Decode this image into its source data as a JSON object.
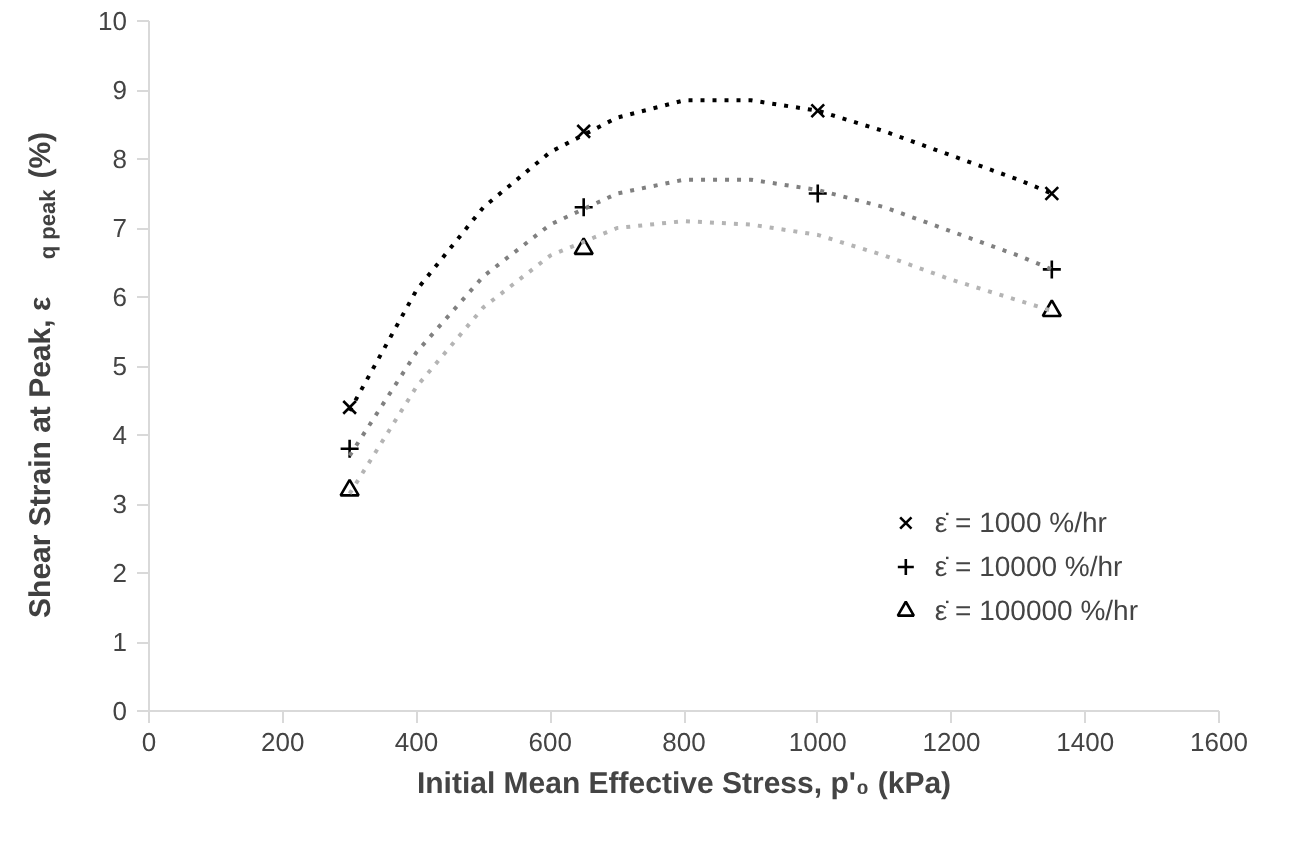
{
  "chart_data": {
    "type": "scatter",
    "xlabel": "Initial Mean Effective Stress, p'₀ (kPa)",
    "ylabel": "Shear Strain at Peak, ε$_{q peak}$ (%)",
    "x": [
      300,
      650,
      1000,
      1350
    ],
    "series": [
      {
        "name": "ε̇ = 1000 %/hr",
        "color": "#000000",
        "marker": "x",
        "values": [
          4.4,
          8.4,
          8.7,
          7.5
        ]
      },
      {
        "name": "ε̇ = 10000 %/hr",
        "color": "#000000",
        "marker": "cross",
        "values": [
          3.8,
          7.3,
          7.5,
          6.4
        ]
      },
      {
        "name": "ε̇ = 100000 %/hr",
        "color": "#000000",
        "marker": "triangle",
        "values": [
          3.2,
          6.7,
          null,
          5.8
        ]
      },
      {
        "type": "line",
        "line_style": "dotted",
        "color": "#000000",
        "x": [
          300,
          400,
          500,
          600,
          700,
          800,
          900,
          1000,
          1100,
          1200,
          1300,
          1350
        ],
        "values": [
          4.35,
          6.1,
          7.3,
          8.1,
          8.6,
          8.85,
          8.85,
          8.7,
          8.4,
          8.05,
          7.7,
          7.5
        ]
      },
      {
        "type": "line",
        "line_style": "dotted",
        "color": "#808080",
        "x": [
          300,
          400,
          500,
          600,
          700,
          800,
          900,
          1000,
          1100,
          1200,
          1300,
          1350
        ],
        "values": [
          3.7,
          5.2,
          6.3,
          7.05,
          7.5,
          7.7,
          7.7,
          7.55,
          7.3,
          6.95,
          6.6,
          6.4
        ]
      },
      {
        "type": "line",
        "line_style": "dotted",
        "color": "#b4b4b4",
        "x": [
          300,
          400,
          500,
          600,
          700,
          800,
          900,
          1000,
          1100,
          1200,
          1300,
          1350
        ],
        "values": [
          3.15,
          4.7,
          5.85,
          6.6,
          7.0,
          7.1,
          7.05,
          6.9,
          6.6,
          6.25,
          5.95,
          5.8
        ]
      }
    ],
    "xlim": [
      0,
      1600
    ],
    "xticks": [
      0,
      200,
      400,
      600,
      800,
      1000,
      1200,
      1400,
      1600
    ],
    "ylim": [
      0,
      10
    ],
    "yticks": [
      0,
      1,
      2,
      3,
      4,
      5,
      6,
      7,
      8,
      9,
      10
    ],
    "grid": false,
    "legend": "bottom right"
  }
}
